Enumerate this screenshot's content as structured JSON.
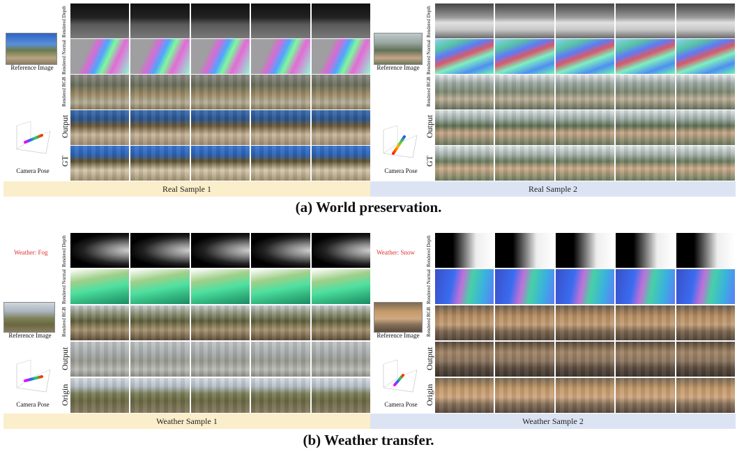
{
  "captions": {
    "a": "(a) World preservation.",
    "b": "(b) Weather transfer."
  },
  "common": {
    "reference_image": "Reference Image",
    "camera_pose": "Camera Pose"
  },
  "row_labels": {
    "depth": "Rendered Depth",
    "normal": "Rendered Normal",
    "rgb": "Rendered RGB",
    "output": "Output",
    "gt": "GT",
    "origin": "Origin"
  },
  "panels": {
    "real1": {
      "banner": "Real Sample 1",
      "banner_color": "#fbeecb"
    },
    "real2": {
      "banner": "Real Sample 2",
      "banner_color": "#dce4f4"
    },
    "weather1": {
      "banner": "Weather Sample 1",
      "banner_color": "#fbeecb",
      "weather": "Weather: Fog"
    },
    "weather2": {
      "banner": "Weather Sample 2",
      "banner_color": "#dce4f4",
      "weather": "Weather: Snow"
    }
  },
  "colors": {
    "weather_label": "#e03030"
  }
}
